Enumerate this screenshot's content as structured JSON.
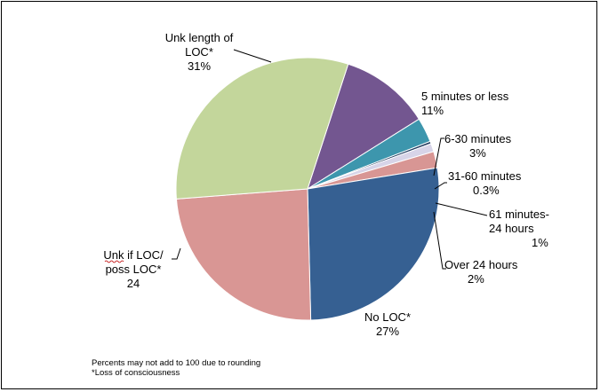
{
  "chart_data": {
    "type": "pie",
    "title": "",
    "start_angle_deg": -72,
    "direction": "clockwise",
    "slices": [
      {
        "label_lines": [
          "5 minutes or less",
          "11%"
        ],
        "value": 11,
        "color": "#735690"
      },
      {
        "label_lines": [
          "6-30 minutes",
          "3%"
        ],
        "value": 3,
        "color": "#3d96ad"
      },
      {
        "label_lines": [
          "31-60 minutes",
          "0.3%"
        ],
        "value": 0.3,
        "color": "#1f3a5f"
      },
      {
        "label_lines": [
          "61 minutes-",
          "24 hours",
          "1%"
        ],
        "value": 1,
        "color": "#d7d4e8"
      },
      {
        "label_lines": [
          "Over 24 hours",
          "2%"
        ],
        "value": 2,
        "color": "#d89694"
      },
      {
        "label_lines": [
          "No LOC*",
          "27%"
        ],
        "value": 27,
        "color": "#366092"
      },
      {
        "label_lines": [
          "Unk if LOC/",
          "poss LOC*",
          "24"
        ],
        "value": 24,
        "color": "#d99694"
      },
      {
        "label_lines": [
          "Unk length of",
          "LOC*",
          "31%"
        ],
        "value": 31,
        "color": "#c3d69b"
      }
    ]
  },
  "footnotes": {
    "line1": "Percents may not add to 100 due to rounding",
    "line2": "*Loss of consciousness"
  }
}
